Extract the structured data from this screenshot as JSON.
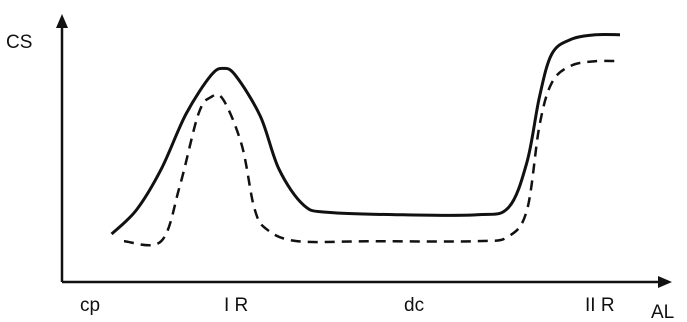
{
  "chart_data": {
    "type": "line",
    "xlabel": "AL",
    "ylabel": "CS",
    "x_ticks": [
      "cp",
      "I R",
      "dc",
      "II R"
    ],
    "axis_arrows": true,
    "grid": false,
    "legend": "none",
    "series": [
      {
        "style": "solid",
        "color": "#111111",
        "points": [
          [
            0.08,
            0.15
          ],
          [
            0.12,
            0.25
          ],
          [
            0.16,
            0.42
          ],
          [
            0.2,
            0.65
          ],
          [
            0.24,
            0.81
          ],
          [
            0.26,
            0.84
          ],
          [
            0.28,
            0.81
          ],
          [
            0.32,
            0.64
          ],
          [
            0.35,
            0.42
          ],
          [
            0.39,
            0.27
          ],
          [
            0.43,
            0.24
          ],
          [
            0.55,
            0.23
          ],
          [
            0.67,
            0.23
          ],
          [
            0.72,
            0.26
          ],
          [
            0.75,
            0.45
          ],
          [
            0.77,
            0.72
          ],
          [
            0.79,
            0.9
          ],
          [
            0.82,
            0.96
          ],
          [
            0.86,
            0.98
          ],
          [
            0.9,
            0.98
          ]
        ]
      },
      {
        "style": "dashed",
        "color": "#111111",
        "points": [
          [
            0.1,
            0.12
          ],
          [
            0.16,
            0.12
          ],
          [
            0.19,
            0.35
          ],
          [
            0.22,
            0.65
          ],
          [
            0.24,
            0.72
          ],
          [
            0.26,
            0.71
          ],
          [
            0.29,
            0.52
          ],
          [
            0.31,
            0.26
          ],
          [
            0.33,
            0.17
          ],
          [
            0.38,
            0.12
          ],
          [
            0.5,
            0.12
          ],
          [
            0.67,
            0.12
          ],
          [
            0.72,
            0.14
          ],
          [
            0.75,
            0.25
          ],
          [
            0.77,
            0.6
          ],
          [
            0.79,
            0.78
          ],
          [
            0.82,
            0.85
          ],
          [
            0.86,
            0.87
          ],
          [
            0.9,
            0.87
          ]
        ]
      }
    ],
    "xlim": [
      0,
      1
    ],
    "ylim": [
      0,
      1
    ]
  }
}
